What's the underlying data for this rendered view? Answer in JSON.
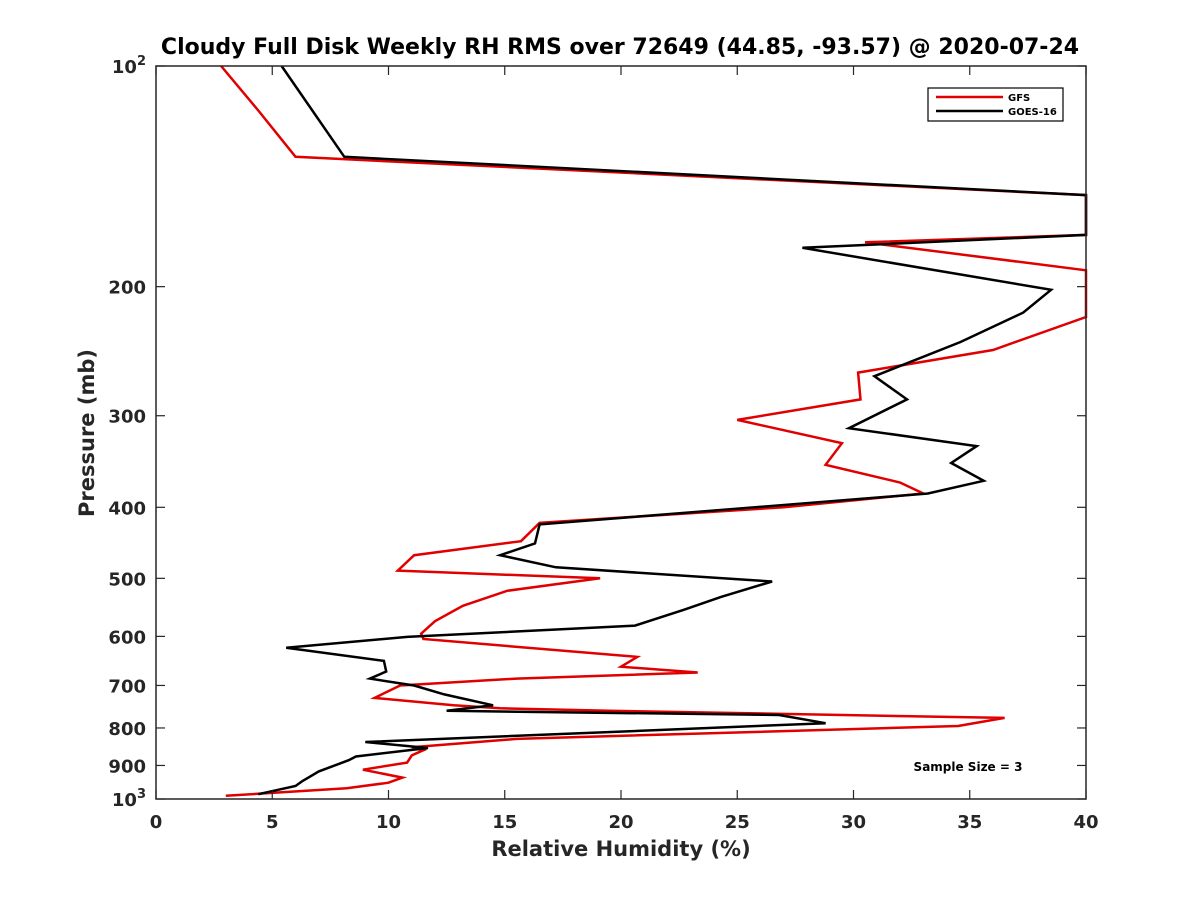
{
  "chart_data": {
    "type": "line",
    "title": "Cloudy Full Disk Weekly RH RMS over 72649 (44.85, -93.57) @ 2020-07-24",
    "xlabel": "Relative Humidity (%)",
    "ylabel": "Pressure (mb)",
    "xlim": [
      0,
      40
    ],
    "ylim": [
      100,
      1000
    ],
    "yscale": "log",
    "y_reversed": true,
    "x_ticks": [
      "0",
      "5",
      "10",
      "15",
      "20",
      "25",
      "30",
      "35",
      "40"
    ],
    "y_ticks": [
      {
        "value": 100,
        "label": "10",
        "exponent": "2"
      },
      {
        "value": 200,
        "label": "200"
      },
      {
        "value": 300,
        "label": "300"
      },
      {
        "value": 400,
        "label": "400"
      },
      {
        "value": 500,
        "label": "500"
      },
      {
        "value": 600,
        "label": "600"
      },
      {
        "value": 700,
        "label": "700"
      },
      {
        "value": 800,
        "label": "800"
      },
      {
        "value": 900,
        "label": "900"
      },
      {
        "value": 1000,
        "label": "10",
        "exponent": "3"
      }
    ],
    "legend_position": "top-right",
    "annotation": "Sample Size = 3",
    "series": [
      {
        "name": "GFS",
        "color": "#e00000",
        "points": [
          [
            2.8,
            100
          ],
          [
            4.4,
            115
          ],
          [
            6.0,
            133
          ],
          [
            40,
            150
          ],
          [
            40,
            170
          ],
          [
            30.5,
            174
          ],
          [
            40,
            190
          ],
          [
            40,
            220
          ],
          [
            36,
            244
          ],
          [
            30.2,
            262
          ],
          [
            30.3,
            285
          ],
          [
            25,
            304
          ],
          [
            29.5,
            327
          ],
          [
            28.8,
            350
          ],
          [
            32,
            370
          ],
          [
            33,
            383
          ],
          [
            27,
            400
          ],
          [
            16.5,
            420
          ],
          [
            15.7,
            445
          ],
          [
            11.1,
            465
          ],
          [
            10.4,
            488
          ],
          [
            19.1,
            500
          ],
          [
            15.1,
            520
          ],
          [
            13.2,
            545
          ],
          [
            12,
            572
          ],
          [
            11.4,
            595
          ],
          [
            11.5,
            605
          ],
          [
            20.7,
            640
          ],
          [
            20.0,
            660
          ],
          [
            23.3,
            672
          ],
          [
            15.5,
            685
          ],
          [
            10.5,
            700
          ],
          [
            9.4,
            728
          ],
          [
            12.8,
            745
          ],
          [
            14.8,
            752
          ],
          [
            19.5,
            758
          ],
          [
            36.5,
            775
          ],
          [
            34.5,
            795
          ],
          [
            15.5,
            828
          ],
          [
            11.0,
            850
          ],
          [
            11.5,
            858
          ],
          [
            11.0,
            872
          ],
          [
            10.8,
            892
          ],
          [
            8.9,
            912
          ],
          [
            10.6,
            935
          ],
          [
            10.0,
            950
          ],
          [
            8.2,
            967
          ],
          [
            3.0,
            990
          ]
        ]
      },
      {
        "name": "GOES-16",
        "color": "#000000",
        "points": [
          [
            5.4,
            100
          ],
          [
            8.1,
            133
          ],
          [
            40,
            150
          ],
          [
            40,
            170
          ],
          [
            27.8,
            177
          ],
          [
            38.5,
            202
          ],
          [
            37.3,
            217
          ],
          [
            34.6,
            238
          ],
          [
            30.9,
            265
          ],
          [
            32.3,
            285
          ],
          [
            29.8,
            312
          ],
          [
            35.3,
            330
          ],
          [
            34.2,
            348
          ],
          [
            35.6,
            368
          ],
          [
            33.2,
            383
          ],
          [
            16.5,
            422
          ],
          [
            16.3,
            448
          ],
          [
            14.8,
            465
          ],
          [
            17.2,
            483
          ],
          [
            26.5,
            505
          ],
          [
            24.3,
            530
          ],
          [
            22.7,
            552
          ],
          [
            20.6,
            580
          ],
          [
            10.8,
            601
          ],
          [
            5.6,
            622
          ],
          [
            9.8,
            648
          ],
          [
            9.9,
            670
          ],
          [
            9.2,
            685
          ],
          [
            11.1,
            700
          ],
          [
            12.4,
            720
          ],
          [
            14.5,
            745
          ],
          [
            12.5,
            758
          ],
          [
            26.8,
            768
          ],
          [
            28.8,
            788
          ],
          [
            9.0,
            836
          ],
          [
            11.7,
            852
          ],
          [
            8.6,
            875
          ],
          [
            8.3,
            885
          ],
          [
            7.0,
            917
          ],
          [
            6.3,
            945
          ],
          [
            6.0,
            960
          ],
          [
            4.4,
            985
          ]
        ]
      }
    ]
  }
}
